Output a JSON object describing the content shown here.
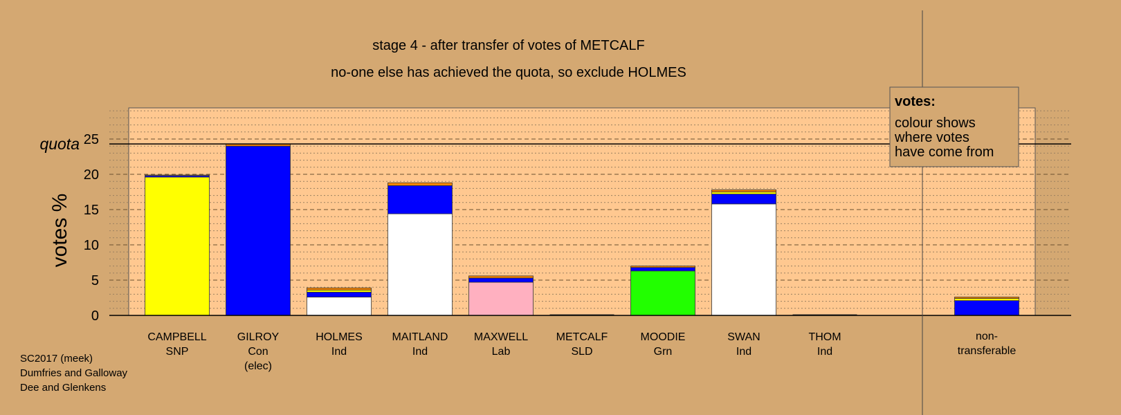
{
  "colors": {
    "background": "#d4a872",
    "plot_background": "#ffc890",
    "snp": "#ffff00",
    "con": "#0000ff",
    "ind": "#ffffff",
    "lab": "#ffb0c0",
    "grn": "#22ff00",
    "sld": "#ff8800",
    "thom": "#cc7700",
    "misc_top": "#e89a40"
  },
  "chart_data": {
    "type": "bar",
    "stacked": true,
    "title": "stage 4 - after transfer of votes of METCALF",
    "subtitle": "no-one else has achieved the quota, so exclude HOLMES",
    "ylabel": "votes %",
    "ylim": [
      0,
      25
    ],
    "yticks": [
      0,
      5,
      10,
      15,
      20,
      25
    ],
    "quota": 24.3,
    "quota_label": "quota",
    "grid": true,
    "categories": [
      {
        "name": "CAMPBELL",
        "party": "SNP",
        "note": ""
      },
      {
        "name": "GILROY",
        "party": "Con",
        "note": "(elec)"
      },
      {
        "name": "HOLMES",
        "party": "Ind",
        "note": ""
      },
      {
        "name": "MAITLAND",
        "party": "Ind",
        "note": ""
      },
      {
        "name": "MAXWELL",
        "party": "Lab",
        "note": ""
      },
      {
        "name": "METCALF",
        "party": "SLD",
        "note": ""
      },
      {
        "name": "MOODIE",
        "party": "Grn",
        "note": ""
      },
      {
        "name": "SWAN",
        "party": "Ind",
        "note": ""
      },
      {
        "name": "THOM",
        "party": "Ind",
        "note": ""
      }
    ],
    "nontransferable_label": [
      "non-",
      "transferable"
    ],
    "bars": [
      [
        {
          "value": 19.6,
          "color": "snp"
        },
        {
          "value": 0.2,
          "color": "con"
        },
        {
          "value": 0.1,
          "color": "misc_top"
        }
      ],
      [
        {
          "value": 24.0,
          "color": "con"
        },
        {
          "value": 0.3,
          "color": "sld"
        }
      ],
      [
        {
          "value": 2.6,
          "color": "ind"
        },
        {
          "value": 0.7,
          "color": "con"
        },
        {
          "value": 0.3,
          "color": "snp"
        },
        {
          "value": 0.3,
          "color": "sld"
        }
      ],
      [
        {
          "value": 14.4,
          "color": "ind"
        },
        {
          "value": 4.0,
          "color": "con"
        },
        {
          "value": 0.4,
          "color": "sld"
        }
      ],
      [
        {
          "value": 4.7,
          "color": "lab"
        },
        {
          "value": 0.6,
          "color": "con"
        },
        {
          "value": 0.3,
          "color": "sld"
        }
      ],
      [
        {
          "value": 0.0,
          "color": "sld"
        }
      ],
      [
        {
          "value": 6.3,
          "color": "grn"
        },
        {
          "value": 0.5,
          "color": "con"
        },
        {
          "value": 0.2,
          "color": "sld"
        }
      ],
      [
        {
          "value": 15.8,
          "color": "ind"
        },
        {
          "value": 1.4,
          "color": "con"
        },
        {
          "value": 0.3,
          "color": "snp"
        },
        {
          "value": 0.3,
          "color": "sld"
        }
      ],
      [
        {
          "value": 0.0,
          "color": "ind"
        }
      ]
    ],
    "nontransferable": [
      {
        "value": 2.1,
        "color": "con"
      },
      {
        "value": 0.3,
        "color": "snp"
      },
      {
        "value": 0.2,
        "color": "sld"
      }
    ],
    "legend": {
      "title": "votes:",
      "lines": [
        "colour shows",
        "where votes",
        "have come from"
      ],
      "position": "top-right"
    }
  },
  "footer": {
    "line1": "SC2017 (meek)",
    "line2": "Dumfries and Galloway",
    "line3": "Dee and Glenkens"
  }
}
